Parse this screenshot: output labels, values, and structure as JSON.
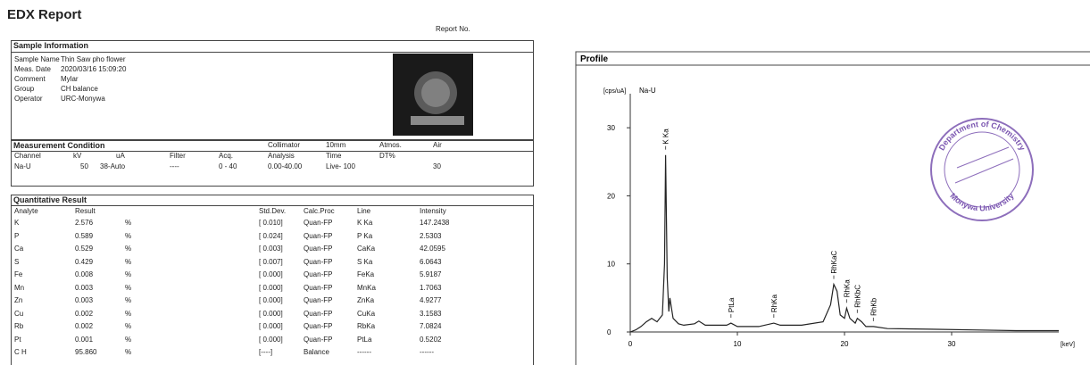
{
  "header": {
    "title": "EDX Report",
    "report_no": "Report No."
  },
  "sample_information": {
    "title": "Sample Information",
    "fields": [
      [
        "Sample Name",
        "Thin Saw pho flower"
      ],
      [
        "Meas. Date",
        "2020/03/16 15:09:20"
      ],
      [
        "Comment",
        "Mylar"
      ],
      [
        "Group",
        "CH balance"
      ],
      [
        "Operator",
        "URC-Monywa"
      ]
    ]
  },
  "measurement_condition": {
    "title": "Measurement Condition",
    "header": [
      "Channel",
      "kV",
      "uA",
      "Filter",
      "Acq.",
      "Collimator",
      "10mm",
      "Atmos.",
      "Air"
    ],
    "subheader": [
      "Analysis",
      "Time",
      "DT%"
    ],
    "row": [
      "Na-U",
      "50",
      "38-Auto",
      "----",
      "0 - 40",
      "0.00-40.00",
      "Live- 100",
      "30"
    ]
  },
  "quantitative_result": {
    "title": "Quantitative Result",
    "columns": [
      "Analyte",
      "Result",
      "Std.Dev.",
      "Calc.Proc",
      "Line",
      "Intensity"
    ],
    "rows": [
      [
        "K",
        "2.576",
        "%",
        "[ 0.010]",
        "Quan-FP",
        "K Ka",
        "147.2438"
      ],
      [
        "P",
        "0.589",
        "%",
        "[ 0.024]",
        "Quan-FP",
        "P Ka",
        "2.5303"
      ],
      [
        "Ca",
        "0.529",
        "%",
        "[ 0.003]",
        "Quan-FP",
        "CaKa",
        "42.0595"
      ],
      [
        "S",
        "0.429",
        "%",
        "[ 0.007]",
        "Quan-FP",
        "S Ka",
        "6.0643"
      ],
      [
        "Fe",
        "0.008",
        "%",
        "[ 0.000]",
        "Quan-FP",
        "FeKa",
        "5.9187"
      ],
      [
        "Mn",
        "0.003",
        "%",
        "[ 0.000]",
        "Quan-FP",
        "MnKa",
        "1.7063"
      ],
      [
        "Zn",
        "0.003",
        "%",
        "[ 0.000]",
        "Quan-FP",
        "ZnKa",
        "4.9277"
      ],
      [
        "Cu",
        "0.002",
        "%",
        "[ 0.000]",
        "Quan-FP",
        "CuKa",
        "3.1583"
      ],
      [
        "Rb",
        "0.002",
        "%",
        "[ 0.000]",
        "Quan-FP",
        "RbKa",
        "7.0824"
      ],
      [
        "Pt",
        "0.001",
        "%",
        "[ 0.000]",
        "Quan-FP",
        "PtLa",
        "0.5202"
      ],
      [
        "C H",
        "95.860",
        "%",
        "[----]",
        "Balance",
        "------",
        "------"
      ]
    ]
  },
  "profile": {
    "type": "line",
    "title": "Profile",
    "y_label": "[cps/uA]",
    "series_label": "Na-U",
    "x_label": "[keV]",
    "xlim": [
      0,
      40
    ],
    "ylim": [
      0,
      35
    ],
    "xticks": [
      0,
      10,
      20,
      30
    ],
    "yticks": [
      0,
      10,
      20,
      30
    ],
    "x": [
      0,
      0.5,
      1,
      1.5,
      2,
      2.5,
      3,
      3.2,
      3.3,
      3.45,
      3.6,
      3.7,
      4,
      4.5,
      5,
      6,
      6.4,
      7,
      8,
      9,
      9.4,
      10,
      12,
      13.4,
      14,
      16,
      18,
      18.7,
      19,
      19.3,
      19.6,
      20,
      20.2,
      20.5,
      21,
      21.2,
      21.6,
      22,
      22.7,
      24,
      28,
      32,
      36,
      40
    ],
    "values": [
      0,
      0.3,
      0.8,
      1.5,
      2,
      1.5,
      2.5,
      10,
      26,
      8,
      3,
      5,
      2,
      1.2,
      1,
      1.2,
      1.6,
      1,
      1,
      1,
      1.3,
      0.8,
      0.8,
      1.3,
      1,
      1,
      1.5,
      4,
      7,
      6,
      2.5,
      2,
      3.5,
      2,
      1.3,
      2,
      1.5,
      0.8,
      0.8,
      0.5,
      0.4,
      0.3,
      0.2,
      0.2
    ],
    "color": "#222222",
    "peaks": [
      {
        "label": "K Ka",
        "x": 3.3,
        "y": 26
      },
      {
        "label": "PtLa",
        "x": 9.4,
        "y": 1.3
      },
      {
        "label": "RhKa",
        "x": 13.4,
        "y": 1.3
      },
      {
        "label": "RhKaC",
        "x": 19,
        "y": 7
      },
      {
        "label": "RhKa",
        "x": 20.2,
        "y": 3.5
      },
      {
        "label": "RhKbC",
        "x": 21.2,
        "y": 2
      },
      {
        "label": "RhKb",
        "x": 22.7,
        "y": 0.8
      }
    ]
  },
  "stamp": {
    "top": "Department of Chemistry",
    "bottom": "Monywa University"
  }
}
